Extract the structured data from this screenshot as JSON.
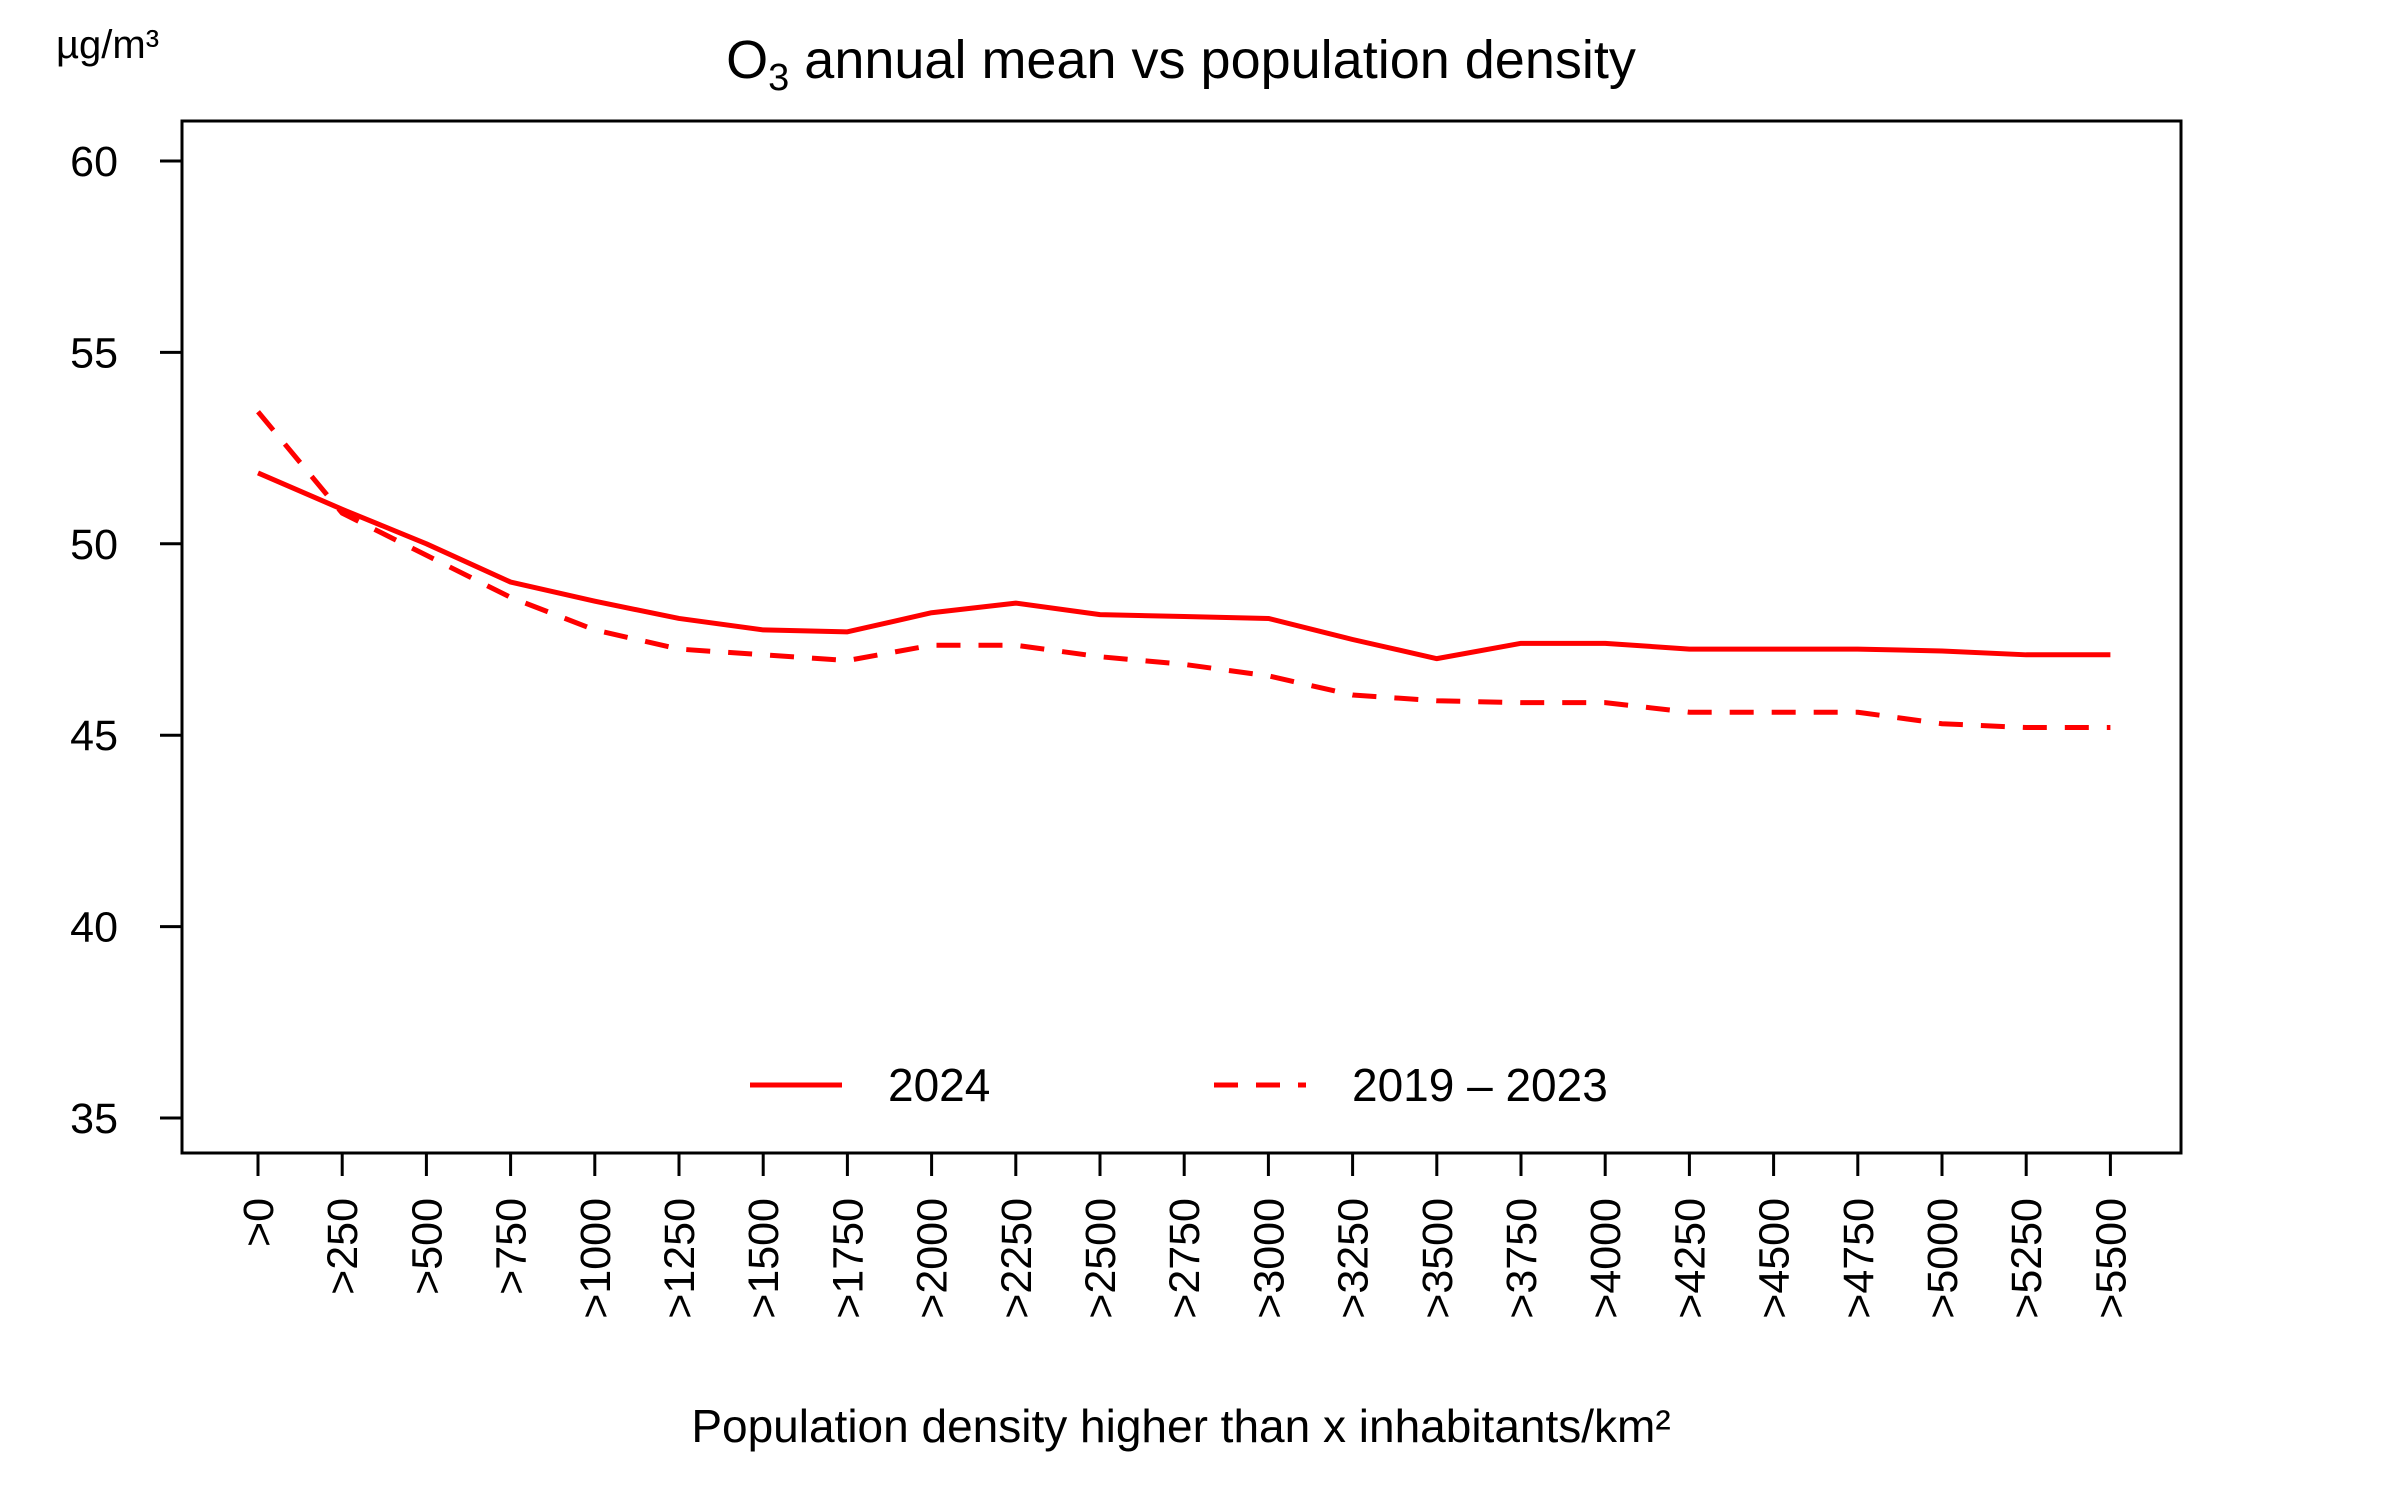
{
  "chart_data": {
    "type": "line",
    "title": {
      "prefix": "O",
      "subscript": "3",
      "suffix": " annual mean vs population density"
    },
    "ylabel": "µg/m³",
    "xlabel": "Population density higher than x inhabitants/km²",
    "ylim": [
      35,
      60
    ],
    "yticks": [
      35,
      40,
      45,
      50,
      55,
      60
    ],
    "categories": [
      ">0",
      ">250",
      ">500",
      ">750",
      ">1000",
      ">1250",
      ">1500",
      ">1750",
      ">2000",
      ">2250",
      ">2500",
      ">2750",
      ">3000",
      ">3250",
      ">3500",
      ">3750",
      ">4000",
      ">4250",
      ">4500",
      ">4750",
      ">5000",
      ">5250",
      ">5500"
    ],
    "series": [
      {
        "name": "2024",
        "color": "#ff0000",
        "style": "solid",
        "values": [
          51.85,
          50.9,
          50.0,
          49.0,
          48.5,
          48.05,
          47.75,
          47.7,
          48.2,
          48.45,
          48.15,
          48.1,
          48.05,
          47.5,
          47.0,
          47.4,
          47.4,
          47.25,
          47.25,
          47.25,
          47.2,
          47.1,
          47.1
        ]
      },
      {
        "name": "2019 – 2023",
        "color": "#ff0000",
        "style": "dashed",
        "values": [
          53.45,
          50.8,
          49.7,
          48.6,
          47.75,
          47.25,
          47.1,
          46.95,
          47.35,
          47.35,
          47.05,
          46.85,
          46.55,
          46.05,
          45.9,
          45.85,
          45.85,
          45.6,
          45.6,
          45.6,
          45.3,
          45.2,
          45.2
        ]
      }
    ],
    "grid": false,
    "legend_position": "bottom-center, inside plot"
  }
}
